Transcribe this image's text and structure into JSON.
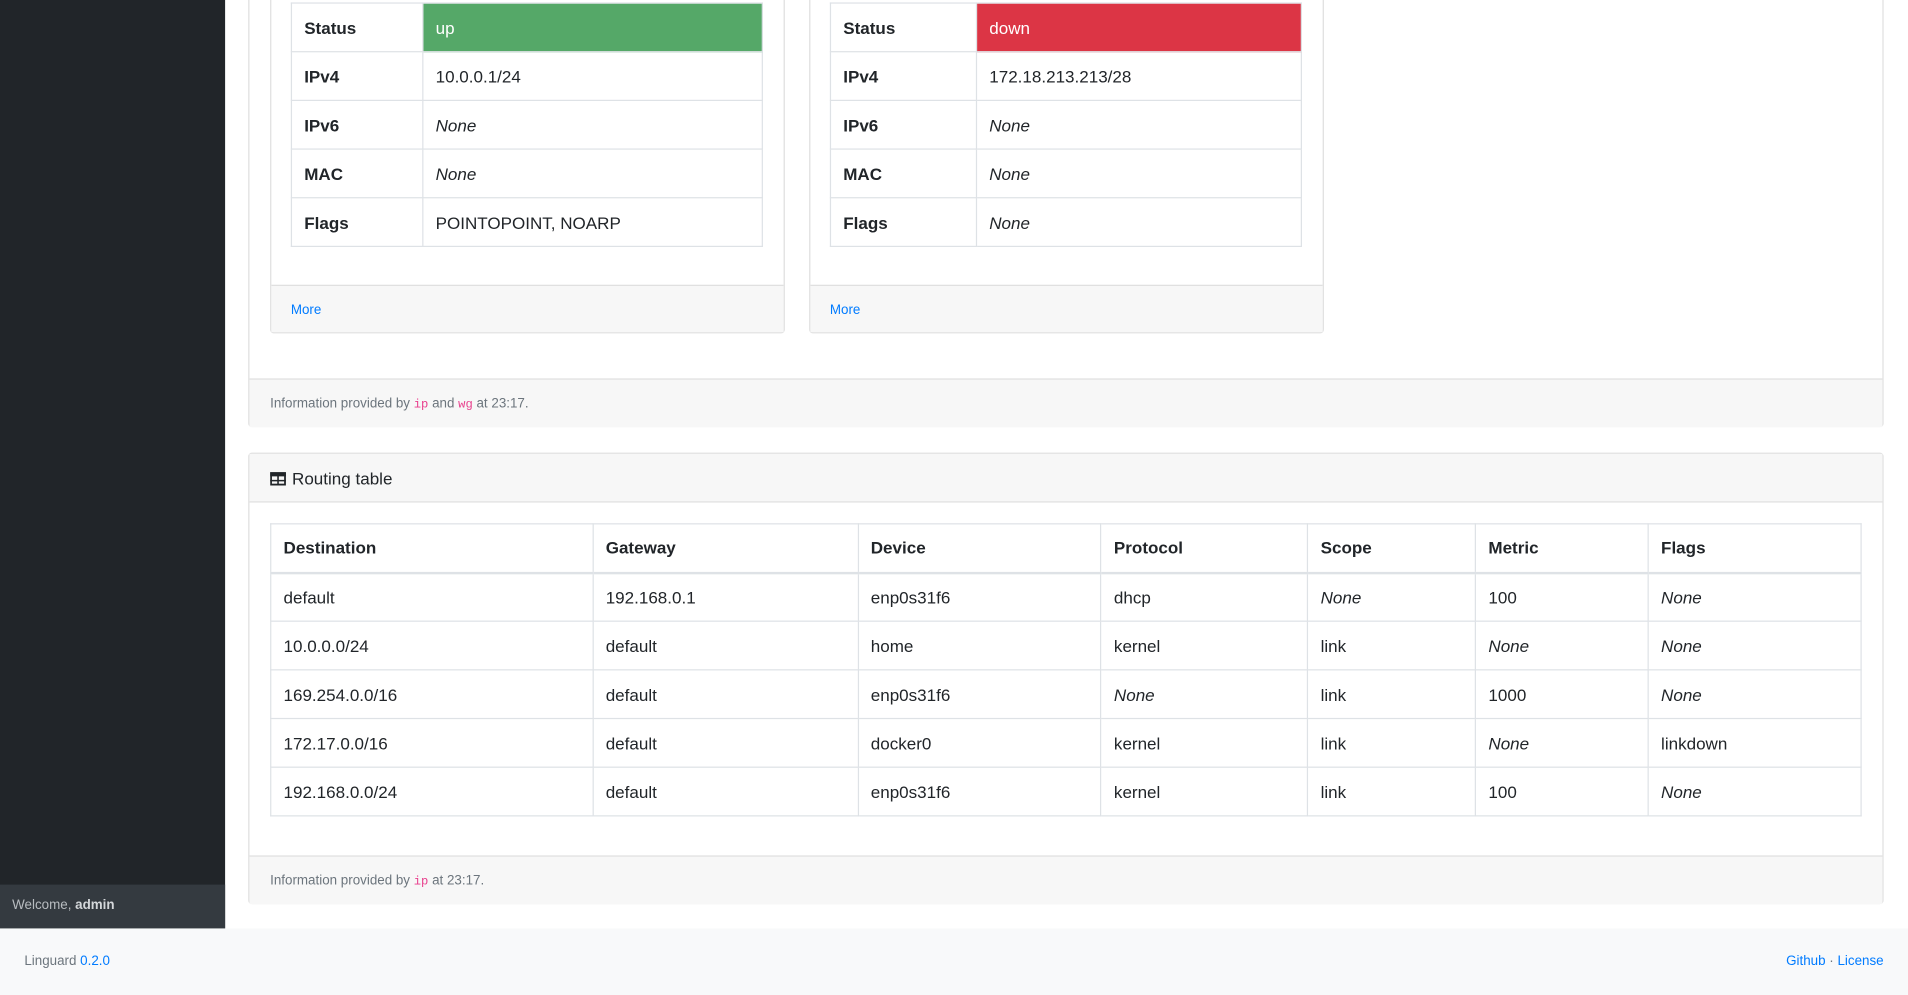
{
  "interfaces": [
    {
      "rows": [
        [
          "Status",
          "up"
        ],
        [
          "IPv4",
          "10.0.0.1/24"
        ],
        [
          "IPv6",
          "None"
        ],
        [
          "MAC",
          "None"
        ],
        [
          "Flags",
          "POINTOPOINT, NOARP"
        ]
      ],
      "more": "More"
    },
    {
      "rows": [
        [
          "Status",
          "down"
        ],
        [
          "IPv4",
          "172.18.213.213/28"
        ],
        [
          "IPv6",
          "None"
        ],
        [
          "MAC",
          "None"
        ],
        [
          "Flags",
          "None"
        ]
      ],
      "more": "More"
    }
  ],
  "interfaces_footer": {
    "prefix": "Information provided by",
    "tool1": "ip",
    "and": "and",
    "tool2": "wg",
    "suffix": "at 23:17."
  },
  "routing": {
    "title": "Routing table",
    "headers": [
      "Destination",
      "Gateway",
      "Device",
      "Protocol",
      "Scope",
      "Metric",
      "Flags"
    ],
    "rows": [
      [
        "default",
        "192.168.0.1",
        "enp0s31f6",
        "dhcp",
        "None",
        "100",
        "None"
      ],
      [
        "10.0.0.0/24",
        "default",
        "home",
        "kernel",
        "link",
        "None",
        "None"
      ],
      [
        "169.254.0.0/16",
        "default",
        "enp0s31f6",
        "None",
        "link",
        "1000",
        "None"
      ],
      [
        "172.17.0.0/16",
        "default",
        "docker0",
        "kernel",
        "link",
        "None",
        "linkdown"
      ],
      [
        "192.168.0.0/24",
        "default",
        "enp0s31f6",
        "kernel",
        "link",
        "100",
        "None"
      ]
    ],
    "footer": {
      "prefix": "Information provided by",
      "tool": "ip",
      "suffix": "at 23:17."
    }
  },
  "sidebar": {
    "welcome": "Welcome,",
    "user": "admin"
  },
  "footer": {
    "app": "Linguard",
    "version": "0.2.0",
    "github": "Github",
    "separator": "·",
    "license": "License"
  }
}
